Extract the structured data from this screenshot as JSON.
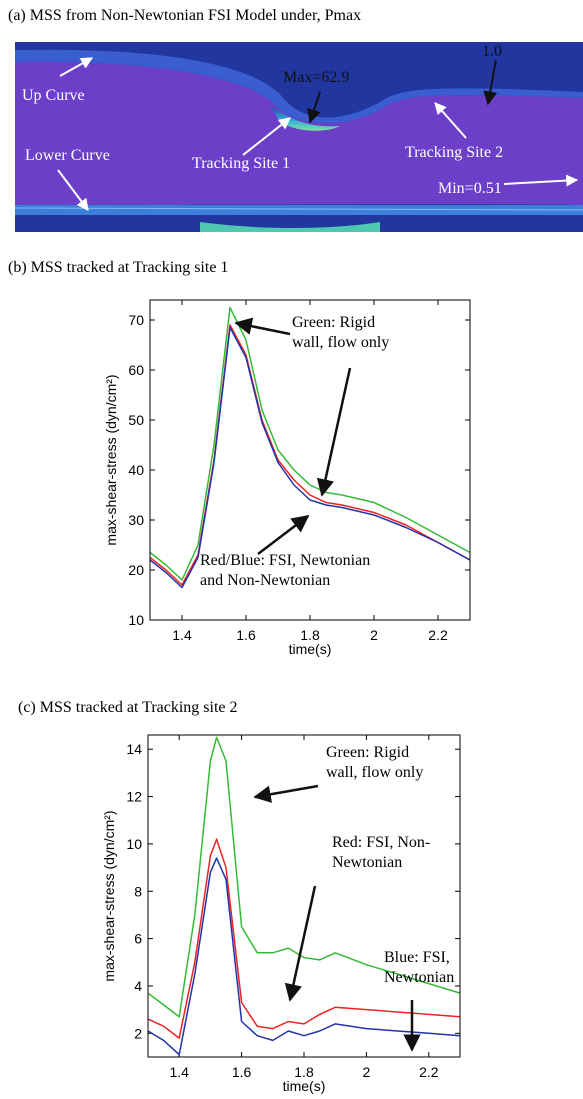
{
  "panel_a": {
    "caption": "(a) MSS from Non-Newtonian FSI Model under, Pmax",
    "labels": [
      "Up Curve",
      "Lower Curve",
      "Tracking Site 1",
      "Tracking Site 2",
      "Max=62.9",
      "Min=0.51",
      "1.0"
    ]
  },
  "chart_data": [
    {
      "type": "line",
      "title": "(b) MSS tracked at Tracking site 1",
      "xlabel": "time(s)",
      "ylabel": "max-shear-stress (dyn/cm²)",
      "x": [
        1.3,
        1.35,
        1.4,
        1.45,
        1.5,
        1.55,
        1.6,
        1.65,
        1.7,
        1.75,
        1.8,
        1.85,
        1.9,
        2.0,
        2.1,
        2.2,
        2.3
      ],
      "series": [
        {
          "name": "Green",
          "color": "#33bb33",
          "values": [
            23.5,
            21,
            18,
            25,
            45,
            72.5,
            66,
            52,
            44,
            40,
            37,
            35.5,
            35,
            33.5,
            30.5,
            27,
            23.5
          ]
        },
        {
          "name": "Red",
          "color": "#ee2222",
          "values": [
            22.5,
            20,
            17,
            23,
            42,
            69,
            63,
            50,
            42,
            38,
            35,
            33.5,
            33,
            31.5,
            29,
            25.5,
            22
          ]
        },
        {
          "name": "Blue",
          "color": "#2233aa",
          "values": [
            22,
            19.5,
            16.5,
            22.5,
            41.5,
            68.5,
            62.5,
            49.5,
            41.5,
            37,
            34,
            33,
            32.5,
            31,
            28.5,
            25.5,
            22
          ]
        }
      ],
      "xlim": [
        1.3,
        2.3
      ],
      "xticks": [
        1.4,
        1.6,
        1.8,
        2,
        2.2
      ],
      "ylim": [
        10,
        74
      ],
      "yticks": [
        10,
        20,
        30,
        40,
        50,
        60,
        70
      ],
      "annotations": [
        {
          "lines": [
            "Green: Rigid",
            "wall, flow only"
          ]
        },
        {
          "lines": [
            "Red/Blue: FSI, Newtonian",
            "and Non-Newtonian"
          ]
        }
      ]
    },
    {
      "type": "line",
      "title": "(c) MSS tracked at Tracking site 2",
      "xlabel": "time(s)",
      "ylabel": "max-shear-stress (dyn/cm²)",
      "x": [
        1.3,
        1.35,
        1.4,
        1.45,
        1.5,
        1.52,
        1.55,
        1.6,
        1.65,
        1.7,
        1.75,
        1.8,
        1.85,
        1.9,
        2.0,
        2.1,
        2.2,
        2.3
      ],
      "series": [
        {
          "name": "Green",
          "color": "#33bb33",
          "values": [
            3.7,
            3.2,
            2.7,
            7,
            13.5,
            14.5,
            13.5,
            6.5,
            5.4,
            5.4,
            5.6,
            5.2,
            5.1,
            5.4,
            4.9,
            4.5,
            4.1,
            3.7
          ]
        },
        {
          "name": "Red",
          "color": "#ee2222",
          "values": [
            2.6,
            2.3,
            1.8,
            5,
            9.5,
            10.2,
            9,
            3.3,
            2.3,
            2.2,
            2.5,
            2.4,
            2.8,
            3.1,
            3,
            2.9,
            2.8,
            2.7
          ]
        },
        {
          "name": "Blue",
          "color": "#2233aa",
          "values": [
            2.1,
            1.7,
            1.1,
            4.5,
            8.8,
            9.4,
            8.5,
            2.5,
            1.9,
            1.7,
            2.1,
            1.9,
            2.1,
            2.4,
            2.2,
            2.1,
            2,
            1.9
          ]
        }
      ],
      "xlim": [
        1.3,
        2.3
      ],
      "xticks": [
        1.4,
        1.6,
        1.8,
        2,
        2.2
      ],
      "ylim": [
        1,
        14.6
      ],
      "yticks": [
        2,
        4,
        6,
        8,
        10,
        12,
        14
      ],
      "annotations": [
        {
          "lines": [
            "Green: Rigid",
            "wall, flow only"
          ]
        },
        {
          "lines": [
            "Red: FSI, Non-",
            "Newtonian"
          ]
        },
        {
          "lines": [
            "Blue: FSI,",
            "Newtonian"
          ]
        }
      ]
    }
  ]
}
